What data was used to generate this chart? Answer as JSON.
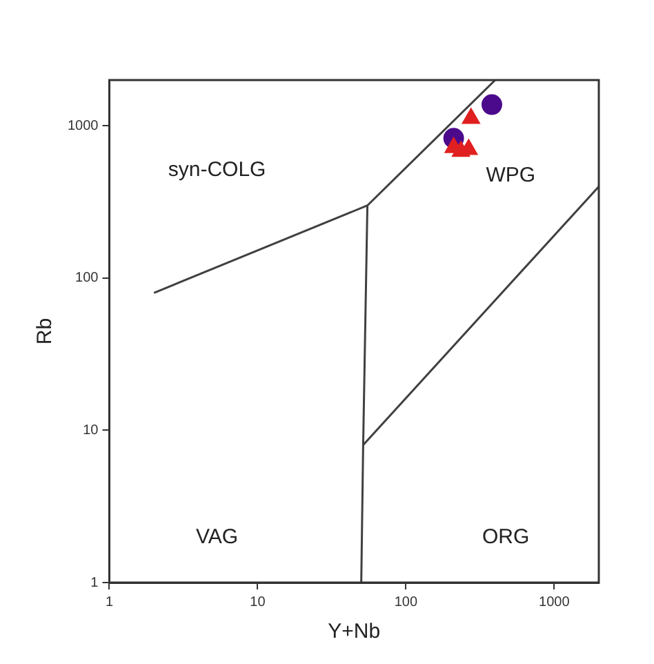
{
  "chart_data": {
    "type": "scatter",
    "xlabel": "Y+Nb",
    "ylabel": "Rb",
    "log": "xy",
    "grid": false,
    "legend": false,
    "xlim": [
      1,
      2000
    ],
    "ylim": [
      1,
      2000
    ],
    "xticks": [
      1,
      10,
      100,
      1000
    ],
    "yticks": [
      1,
      10,
      100,
      1000
    ],
    "series": [
      {
        "type": "line",
        "color": "#404040",
        "marker": "none",
        "x": [
          2,
          55,
          400
        ],
        "values": [
          80,
          300,
          2000
        ]
      },
      {
        "type": "line",
        "color": "#404040",
        "marker": "none",
        "x": [
          55,
          51.5,
          50
        ],
        "values": [
          300,
          8,
          1
        ]
      },
      {
        "type": "line",
        "color": "#404040",
        "marker": "none",
        "x": [
          51.5,
          2000
        ],
        "values": [
          8,
          400
        ]
      },
      {
        "color": "#e02020",
        "marker": "triangle",
        "x": [
          275,
          235,
          210,
          265
        ],
        "values": [
          1120,
          680,
          720,
          700
        ]
      },
      {
        "color": "#4b0a8c",
        "marker": "circle",
        "x": [
          380,
          210
        ],
        "values": [
          1380,
          830
        ]
      }
    ],
    "annotations": [
      "syn-COLG",
      "WPG",
      "VAG",
      "ORG"
    ]
  }
}
